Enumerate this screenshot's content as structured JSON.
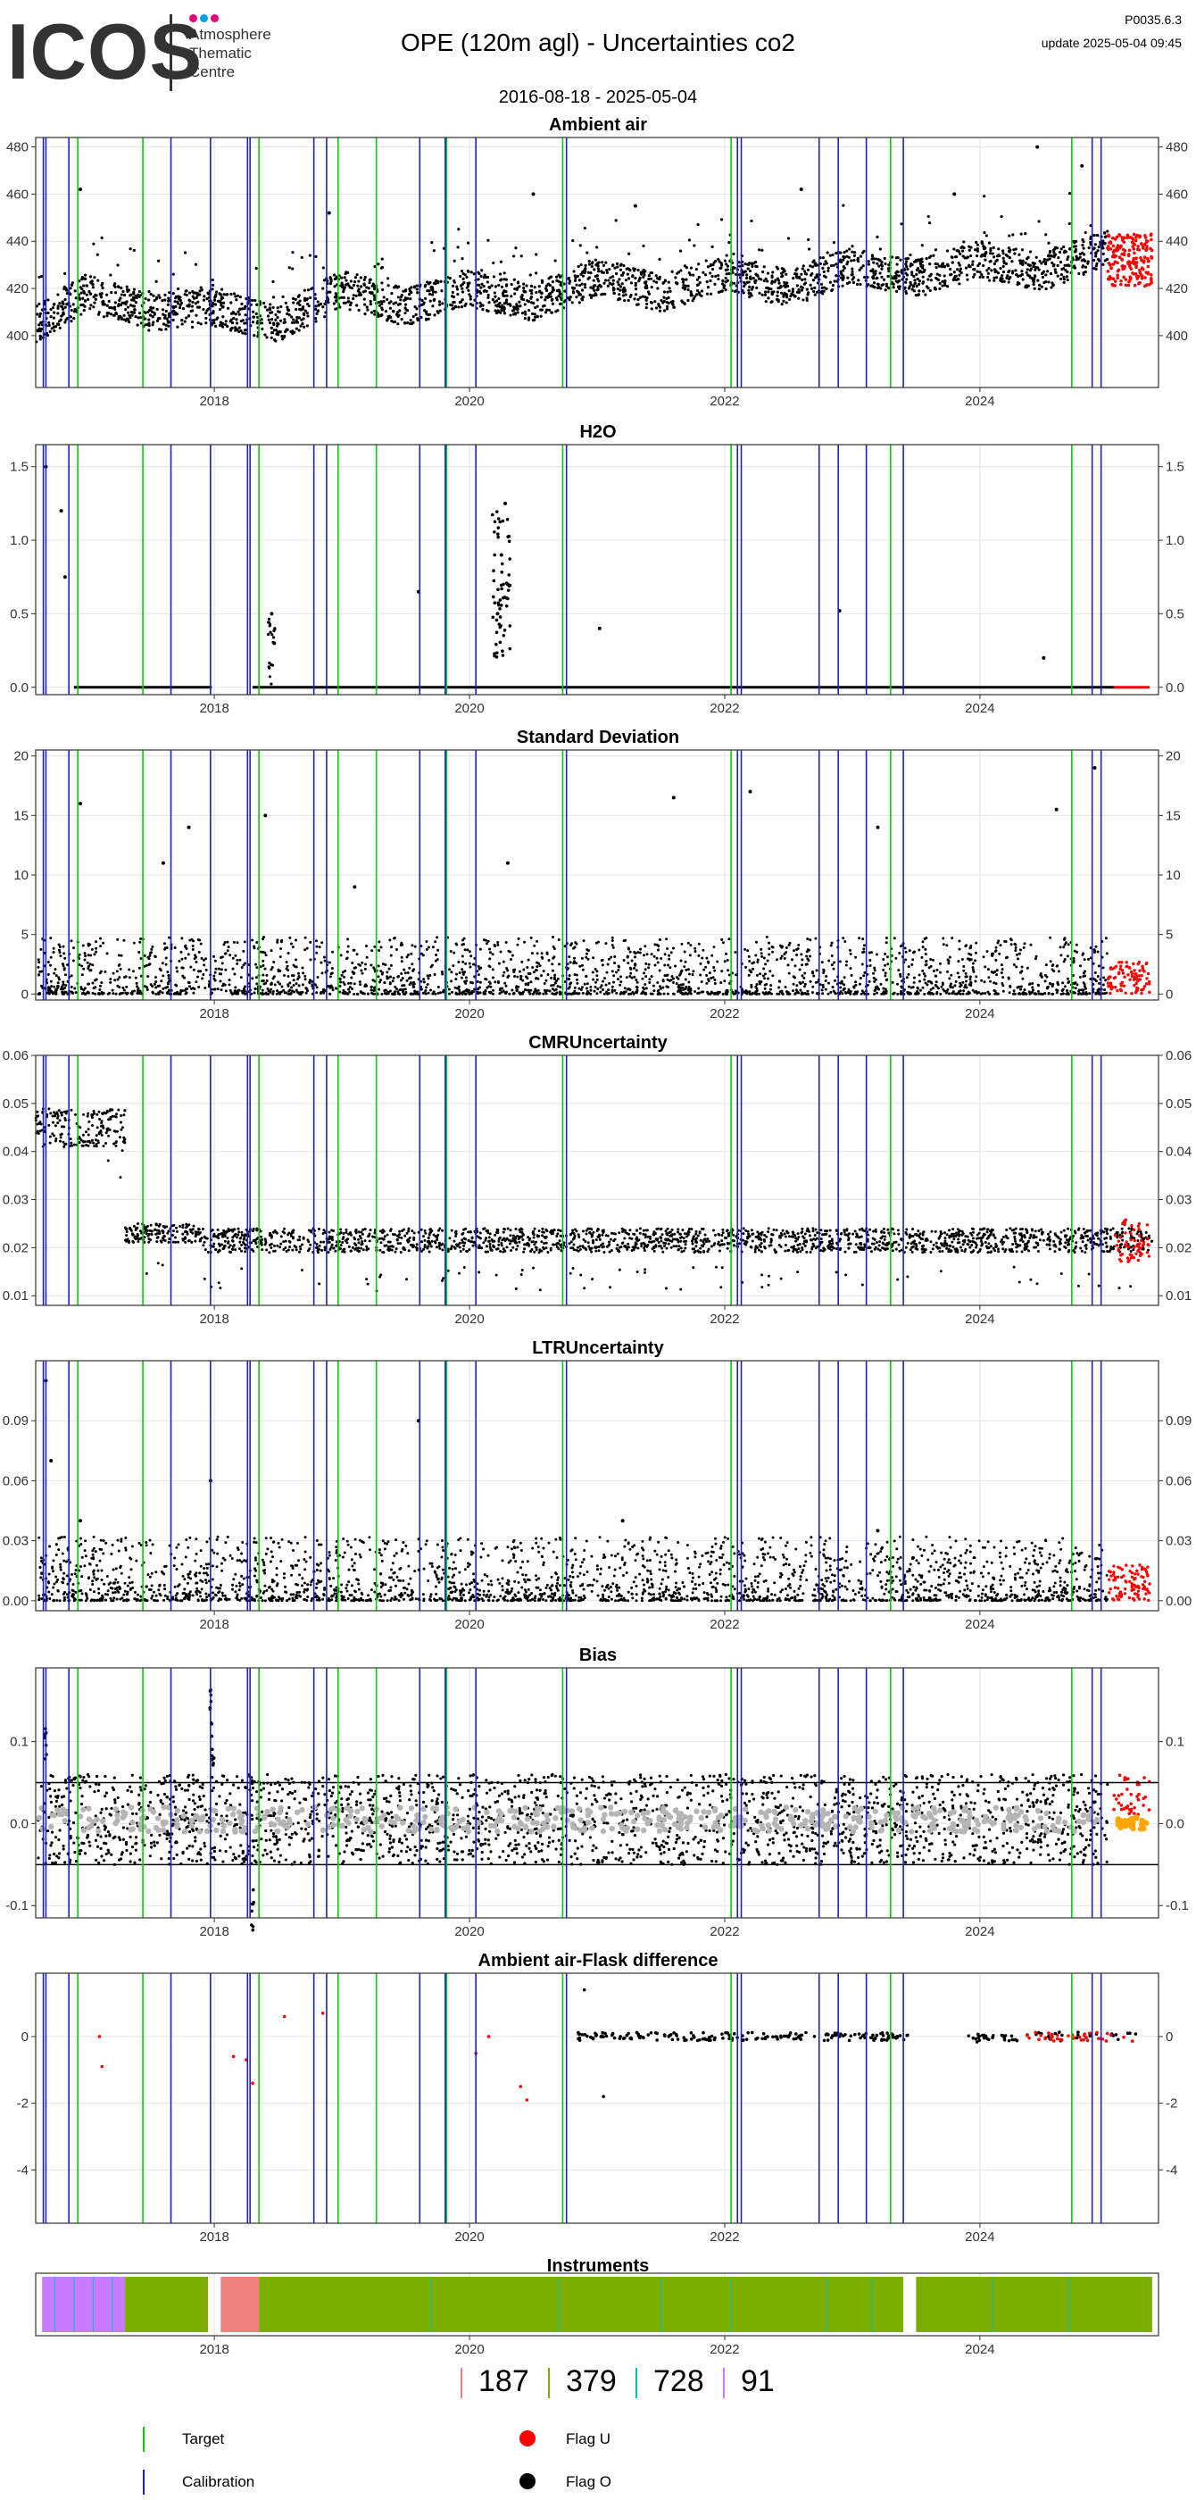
{
  "header": {
    "logo_text": "ICOS",
    "logo_subtitle": [
      "Atmosphere",
      "Thematic",
      "Centre"
    ],
    "title": "OPE  (120m agl) - Uncertainties co2",
    "date_range": "2016-08-18 - 2025-05-04",
    "version": "P0035.6.3",
    "update": "update  2025-05-04 09:45",
    "logo_dot_colors": [
      "#e6007e",
      "#00a0e3",
      "#e6007e"
    ]
  },
  "colors": {
    "target": "#00d000",
    "calibration": "#2020c0",
    "flag_u": "#ff0000",
    "flag_o": "#000000",
    "bias_gray": "#b5b5b5",
    "bias_orange": "#ffa500"
  },
  "events": {
    "target_dates": [
      2016.93,
      2017.44,
      2018.35,
      2018.97,
      2019.27,
      2019.82,
      2020.73,
      2022.05,
      2023.3,
      2024.72
    ],
    "calibration_dates": [
      2016.66,
      2016.68,
      2016.86,
      2017.66,
      2017.97,
      2018.26,
      2018.28,
      2018.78,
      2018.88,
      2019.61,
      2019.81,
      2020.05,
      2020.76,
      2022.1,
      2022.13,
      2022.74,
      2022.89,
      2023.11,
      2023.4,
      2024.88,
      2024.95
    ]
  },
  "chart_data": [
    {
      "type": "scatter",
      "title": "Ambient air",
      "xlim": [
        2016.6,
        2025.4
      ],
      "ylim": [
        378,
        484
      ],
      "x_ticks": [
        2018,
        2020,
        2022,
        2024
      ],
      "x_tick_labels": [
        "2018",
        "2020",
        "2022",
        "2024"
      ],
      "y_ticks": [
        400,
        420,
        440,
        460,
        480
      ],
      "y_tick_labels": [
        "400",
        "420",
        "440",
        "460",
        "480"
      ],
      "grid": true,
      "profile": {
        "x": [
          2016.6,
          2017.0,
          2017.5,
          2018.0,
          2018.5,
          2019.0,
          2019.5,
          2020.0,
          2020.5,
          2021.0,
          2021.5,
          2022.0,
          2022.5,
          2023.0,
          2023.5,
          2024.0,
          2024.5,
          2025.0,
          2025.35
        ],
        "y": [
          405,
          418,
          410,
          412,
          405,
          420,
          412,
          420,
          414,
          425,
          418,
          427,
          420,
          430,
          424,
          432,
          427,
          438,
          430
        ],
        "spread": 8
      },
      "flag_u_points": {
        "x": [
          2025.05,
          2025.1,
          2025.15,
          2025.2,
          2025.25,
          2025.3
        ],
        "y": [
          438,
          430,
          442,
          428,
          435,
          425
        ]
      },
      "outliers": {
        "x": [
          2016.95,
          2018.9,
          2020.5,
          2021.3,
          2022.6,
          2023.8,
          2024.45,
          2024.8
        ],
        "y": [
          462,
          452,
          460,
          455,
          462,
          460,
          480,
          472
        ]
      }
    },
    {
      "type": "scatter",
      "title": "H2O",
      "xlim": [
        2016.6,
        2025.4
      ],
      "ylim": [
        -0.05,
        1.65
      ],
      "x_ticks": [
        2018,
        2020,
        2022,
        2024
      ],
      "x_tick_labels": [
        "2018",
        "2020",
        "2022",
        "2024"
      ],
      "y_ticks": [
        0,
        0.5,
        1.0,
        1.5
      ],
      "y_tick_labels": [
        "0.0",
        "0.5",
        "1.0",
        "1.5"
      ],
      "grid": true,
      "baseline": 0.0,
      "gaps": [
        [
          2017.98,
          2018.28
        ]
      ],
      "spikes": {
        "x": [
          2016.68,
          2016.8,
          2016.83,
          2018.45,
          2018.47,
          2019.6,
          2020.22,
          2020.25,
          2020.28,
          2020.3,
          2021.02,
          2022.9,
          2024.5
        ],
        "y": [
          1.5,
          1.2,
          0.75,
          0.5,
          0.3,
          0.65,
          0.5,
          0.9,
          1.25,
          0.7,
          0.4,
          0.52,
          0.2
        ]
      },
      "flag_u_points": {
        "x": [
          2025.1,
          2025.2,
          2025.3
        ],
        "y": [
          0.0,
          0.0,
          0.0
        ]
      }
    },
    {
      "type": "scatter",
      "title": "Standard Deviation",
      "xlim": [
        2016.6,
        2025.4
      ],
      "ylim": [
        -0.5,
        20.5
      ],
      "x_ticks": [
        2018,
        2020,
        2022,
        2024
      ],
      "x_tick_labels": [
        "2018",
        "2020",
        "2022",
        "2024"
      ],
      "y_ticks": [
        0,
        5,
        10,
        15,
        20
      ],
      "y_tick_labels": [
        "0",
        "5",
        "10",
        "15",
        "20"
      ],
      "grid": true,
      "band": [
        0,
        3
      ],
      "outliers": {
        "x": [
          2016.95,
          2017.6,
          2017.8,
          2018.4,
          2019.1,
          2020.3,
          2021.6,
          2022.2,
          2023.2,
          2024.6,
          2024.9
        ],
        "y": [
          16,
          11,
          14,
          15,
          9,
          11,
          16.5,
          17,
          14,
          15.5,
          19
        ]
      },
      "flag_u_points": {
        "x": [
          2025.1,
          2025.2,
          2025.3
        ],
        "y": [
          1,
          2,
          0.5
        ]
      }
    },
    {
      "type": "scatter",
      "title": "CMRUncertainty",
      "xlim": [
        2016.6,
        2025.4
      ],
      "ylim": [
        0.008,
        0.06
      ],
      "x_ticks": [
        2018,
        2020,
        2022,
        2024
      ],
      "x_tick_labels": [
        "2018",
        "2020",
        "2022",
        "2024"
      ],
      "y_ticks": [
        0.01,
        0.02,
        0.03,
        0.04,
        0.05,
        0.06
      ],
      "y_tick_labels": [
        "0.01",
        "0.02",
        "0.03",
        "0.04",
        "0.05",
        "0.06"
      ],
      "grid": true,
      "levels": [
        {
          "from": 2016.6,
          "to": 2017.3,
          "y": 0.045,
          "spread": 0.004
        },
        {
          "from": 2017.3,
          "to": 2017.9,
          "y": 0.023,
          "spread": 0.002
        },
        {
          "from": 2017.9,
          "to": 2025.35,
          "y": 0.0215,
          "spread": 0.0025
        }
      ],
      "flag_u_points": {
        "x": [
          2025.1,
          2025.2,
          2025.3
        ],
        "y": [
          0.021,
          0.018,
          0.024
        ]
      }
    },
    {
      "type": "scatter",
      "title": "LTRUncertainty",
      "xlim": [
        2016.6,
        2025.4
      ],
      "ylim": [
        -0.005,
        0.12
      ],
      "x_ticks": [
        2018,
        2020,
        2022,
        2024
      ],
      "x_tick_labels": [
        "2018",
        "2020",
        "2022",
        "2024"
      ],
      "y_ticks": [
        0.0,
        0.03,
        0.06,
        0.09
      ],
      "y_tick_labels": [
        "0.00",
        "0.03",
        "0.06",
        "0.09"
      ],
      "grid": true,
      "band": [
        0.0,
        0.02
      ],
      "outliers": {
        "x": [
          2016.68,
          2016.72,
          2016.95,
          2017.97,
          2019.6,
          2021.2,
          2023.2
        ],
        "y": [
          0.11,
          0.07,
          0.04,
          0.06,
          0.09,
          0.04,
          0.035
        ]
      },
      "flag_u_points": {
        "x": [
          2025.1,
          2025.2,
          2025.3
        ],
        "y": [
          0.02,
          0.01,
          0.025
        ]
      }
    },
    {
      "type": "scatter",
      "title": "Bias",
      "xlim": [
        2016.6,
        2025.4
      ],
      "ylim": [
        -0.115,
        0.19
      ],
      "x_ticks": [
        2018,
        2020,
        2022,
        2024
      ],
      "x_tick_labels": [
        "2018",
        "2020",
        "2022",
        "2024"
      ],
      "y_ticks": [
        -0.1,
        0.0,
        0.1
      ],
      "y_tick_labels": [
        "-0.1",
        "0.0",
        "0.1"
      ],
      "grid": true,
      "hlines": [
        0.05,
        -0.05
      ],
      "band": [
        -0.05,
        0.06
      ],
      "gray_band": [
        -0.01,
        0.02
      ],
      "spikes": {
        "x": [
          2016.68,
          2017.97,
          2017.99,
          2018.3
        ],
        "y": [
          0.12,
          0.17,
          0.12,
          -0.08
        ]
      },
      "flag_u_points": {
        "x": [
          2025.05,
          2025.15,
          2025.25
        ],
        "y": [
          0.04,
          0.05,
          0.03
        ]
      },
      "orange_points": {
        "x": [
          2025.1,
          2025.2,
          2025.3
        ],
        "y": [
          0.0,
          -0.005,
          0.005
        ]
      }
    },
    {
      "type": "scatter",
      "title": "Ambient air-Flask difference",
      "xlim": [
        2016.6,
        2025.4
      ],
      "ylim": [
        -5.6,
        1.9
      ],
      "x_ticks": [
        2018,
        2020,
        2022,
        2024
      ],
      "x_tick_labels": [
        "2018",
        "2020",
        "2022",
        "2024"
      ],
      "y_ticks": [
        -4,
        -2,
        0
      ],
      "y_tick_labels": [
        "-4",
        "-2",
        "0"
      ],
      "grid": true,
      "red_points": {
        "x": [
          2017.1,
          2017.12,
          2018.15,
          2018.25,
          2018.3,
          2018.55,
          2018.85,
          2020.05,
          2020.15,
          2020.4,
          2020.45
        ],
        "y": [
          0.0,
          -0.9,
          -0.6,
          -0.7,
          -1.4,
          0.6,
          0.7,
          -0.5,
          0.0,
          -1.5,
          -1.9
        ]
      },
      "black_runs": [
        [
          2020.85,
          2023.45,
          0.0,
          0.12
        ],
        [
          2023.9,
          2024.3,
          -0.05,
          0.12
        ]
      ],
      "black_points": {
        "x": [
          2020.9,
          2021.05
        ],
        "y": [
          1.4,
          -1.8
        ]
      },
      "red_runs": [
        [
          2024.35,
          2025.25,
          0.0,
          0.14
        ]
      ]
    },
    {
      "type": "bar",
      "title": "Instruments",
      "xlim": [
        2016.6,
        2025.4
      ],
      "x_ticks": [
        2018,
        2020,
        2022,
        2024
      ],
      "x_tick_labels": [
        "2018",
        "2020",
        "2022",
        "2024"
      ],
      "segments": [
        {
          "instrument": "91",
          "from": 2016.65,
          "to": 2017.3
        },
        {
          "instrument": "379",
          "from": 2017.3,
          "to": 2017.95
        },
        {
          "instrument": "187",
          "from": 2018.05,
          "to": 2018.35
        },
        {
          "instrument": "379",
          "from": 2018.35,
          "to": 2023.4
        },
        {
          "instrument": "379",
          "from": 2023.5,
          "to": 2025.35
        }
      ],
      "instrument_colors": {
        "187": "#f08080",
        "379": "#7cae00",
        "728": "#00bfc4",
        "91": "#c77cff"
      },
      "instrument_markers_x": [
        2016.75,
        2016.9,
        2017.05,
        2017.2,
        2019.7,
        2020.7,
        2021.5,
        2022.05,
        2022.8,
        2023.15,
        2024.1,
        2024.7
      ]
    }
  ],
  "instrument_counts": [
    {
      "label": "187",
      "color": "#f08080"
    },
    {
      "label": "379",
      "color": "#7cae00"
    },
    {
      "label": "728",
      "color": "#00bfc4"
    },
    {
      "label": "91",
      "color": "#c77cff"
    }
  ],
  "legend": {
    "target_label": "Target",
    "calibration_label": "Calibration",
    "flag_u_label": "Flag U",
    "flag_o_label": "Flag O"
  }
}
